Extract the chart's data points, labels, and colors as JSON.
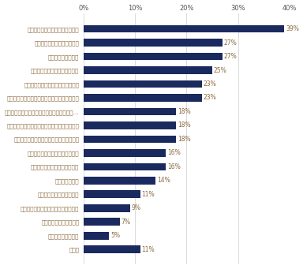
{
  "categories": [
    "出世にこだわらずに働きたいから",
    "責任と給与が比例しないから",
    "特に興味がないから",
    "自分に向いていないと思うから",
    "やりたくない仕事が増えそうだから",
    "給与・年収が急激に上がるイメージがないから",
    "周囲からの期待やプレッシャーに耐えられな…",
    "社内で出世した人にロールモデルがいないから",
    "単純に仕事量が増えるだけな気がするから",
    "今担当している仕事が好きだから",
    "プライベートを重視したいから",
    "現場主義だから",
    "仕事が楽しければ良いから",
    "今の給料で十分生活できて満足だから",
    "責任を持ちたくないから",
    "一般社員が楽だから",
    "その他"
  ],
  "values": [
    39,
    27,
    27,
    25,
    23,
    23,
    18,
    18,
    18,
    16,
    16,
    14,
    11,
    9,
    7,
    5,
    11
  ],
  "bar_color": "#1a2a5e",
  "label_color": "#8b6a3e",
  "value_color": "#8b6a3e",
  "xtick_color": "#555555",
  "background_color": "#ffffff",
  "xlim": [
    0,
    40
  ],
  "xticks": [
    0,
    10,
    20,
    30,
    40
  ],
  "xtick_labels": [
    "0%",
    "10%",
    "20%",
    "30%",
    "40%"
  ],
  "bar_height": 0.55,
  "figsize": [
    3.84,
    3.41
  ],
  "dpi": 100,
  "label_fontsize": 5.2,
  "value_fontsize": 5.5,
  "tick_fontsize": 6.0
}
